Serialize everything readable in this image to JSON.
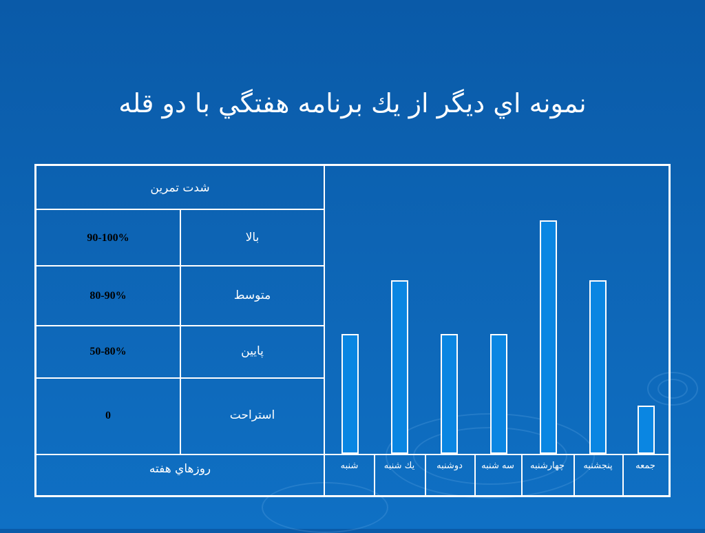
{
  "slide": {
    "title": "نمونه اي ديگر  از يك برنامه هفتگي با دو قله"
  },
  "table": {
    "header": "شدت تمرين",
    "rows": [
      {
        "label": "بالا",
        "value": "90-100%"
      },
      {
        "label": "متوسط",
        "value": "80-90%"
      },
      {
        "label": "پايين",
        "value": "50-80%"
      },
      {
        "label": "استراحت",
        "value": "0"
      }
    ],
    "footer": "روزهاي هفته"
  },
  "chart_data": {
    "type": "bar",
    "categories": [
      "شنبه",
      "يك شنبه",
      "دوشنبه",
      "سه شنبه",
      "چهارشنبه",
      "پنجشنبه",
      "جمعه"
    ],
    "level_axis": [
      "0",
      "50-80%",
      "80-90%",
      "90-100%"
    ],
    "values": [
      2.0,
      2.9,
      2.0,
      2.0,
      3.9,
      2.9,
      0.8
    ],
    "ylim": [
      0,
      4
    ],
    "grid": false,
    "legend": "none"
  },
  "colors": {
    "background": "#0d64b4",
    "bar_fill": "#0a86e2",
    "lines": "#ffffff"
  }
}
